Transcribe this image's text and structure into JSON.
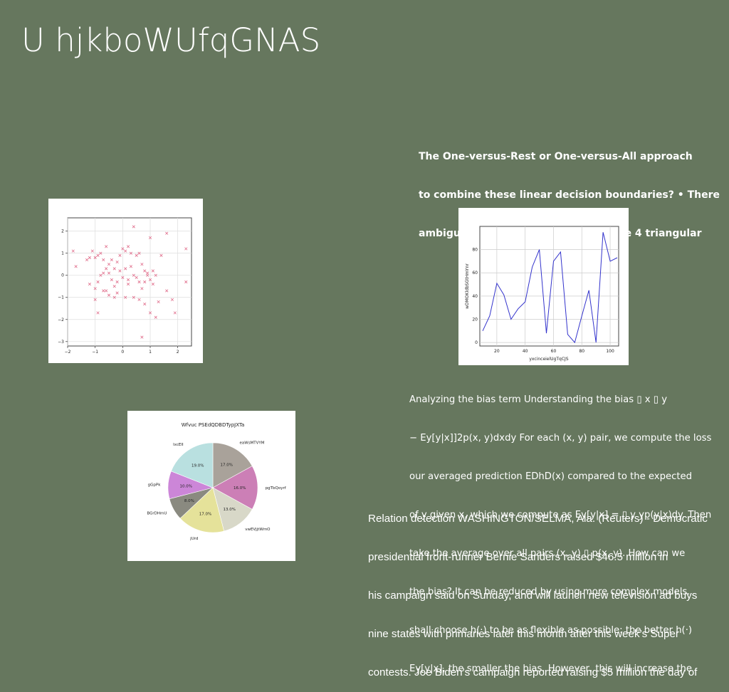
{
  "slide": {
    "title": "U hjkboWUfqGNAS",
    "bold_lines": [
      "The One-versus-Rest or One-versus-All approach",
      "to combine these linear decision boundaries? • There",
      "ambiguity in some of the regions (the 4 triangular"
    ],
    "paragraph_lines": [
      "Analyzing the bias term Understanding the bias ▯ x ▯ y",
      "− Ey[y|x]]2p(x, y)dxdy For each (x, y) pair, we compute the loss",
      "our averaged prediction EDhD(x) compared to the expected",
      "of y given x, which we compute as Ey[y|x] = ▯ y yp(y|x)dy. Then",
      "take the average over all pairs (x, y) ▯ p(x, y). How can we",
      "the bias? It can be reduced by using more complex models.",
      "shall choose h(·) to be as flexible as possible: the better h(·)",
      "Ey[y|x], the smaller the bias. However, this will increase the"
    ],
    "news_lines": [
      "Relation detection WASHINGTON/SELMA, Ala. (Reuters) - Democratic",
      "presidential front-runner Bernie Sanders raised $46.5 million in",
      "his campaign said on Sunday, and will launch new television ad buys",
      "nine states with primaries later this month after this week’s Super",
      "contests. Joe Biden’s campaign reported raising $5 million the day of"
    ]
  },
  "chart_data": [
    {
      "type": "scatter",
      "marker": "x",
      "color": "#e06c8a",
      "xlim": [
        -2,
        2.5
      ],
      "ylim": [
        -3.2,
        2.6
      ],
      "xticks": [
        -2,
        -1,
        0,
        1,
        2
      ],
      "yticks": [
        -3,
        -2,
        -1,
        0,
        1,
        2
      ],
      "xtick_labels": [
        "−2",
        "−1",
        "0",
        "1",
        "2"
      ],
      "ytick_labels": [
        "−3",
        "−2",
        "−1",
        "0",
        "1",
        "2"
      ],
      "grid": true,
      "points": [
        [
          -1.8,
          1.1
        ],
        [
          -1.7,
          0.4
        ],
        [
          -1.3,
          0.7
        ],
        [
          -1.2,
          0.8
        ],
        [
          -1.1,
          1.1
        ],
        [
          -1.0,
          0.8
        ],
        [
          -0.9,
          0.9
        ],
        [
          -0.8,
          1.0
        ],
        [
          -0.7,
          0.7
        ],
        [
          -0.6,
          1.3
        ],
        [
          -0.5,
          0.5
        ],
        [
          -0.4,
          0.7
        ],
        [
          -0.3,
          0.3
        ],
        [
          -0.2,
          0.6
        ],
        [
          -0.1,
          0.9
        ],
        [
          0.0,
          1.2
        ],
        [
          0.1,
          1.1
        ],
        [
          0.2,
          1.3
        ],
        [
          0.3,
          1.0
        ],
        [
          0.4,
          2.2
        ],
        [
          0.5,
          0.9
        ],
        [
          0.6,
          1.0
        ],
        [
          0.7,
          0.5
        ],
        [
          0.8,
          0.2
        ],
        [
          0.9,
          0.1
        ],
        [
          1.0,
          1.7
        ],
        [
          1.2,
          0.0
        ],
        [
          1.4,
          0.9
        ],
        [
          1.6,
          1.9
        ],
        [
          2.3,
          1.2
        ],
        [
          -1.2,
          -0.4
        ],
        [
          -1.0,
          -0.6
        ],
        [
          -0.9,
          -0.3
        ],
        [
          -0.8,
          0.0
        ],
        [
          -0.7,
          0.1
        ],
        [
          -0.6,
          0.3
        ],
        [
          -0.5,
          0.1
        ],
        [
          -0.4,
          -0.2
        ],
        [
          -0.3,
          -0.5
        ],
        [
          -0.2,
          -0.3
        ],
        [
          -0.1,
          0.2
        ],
        [
          0.0,
          -0.1
        ],
        [
          0.1,
          0.3
        ],
        [
          0.2,
          -0.2
        ],
        [
          0.3,
          0.4
        ],
        [
          0.4,
          0.0
        ],
        [
          0.5,
          -0.1
        ],
        [
          0.6,
          -0.3
        ],
        [
          0.7,
          -0.6
        ],
        [
          0.8,
          -0.3
        ],
        [
          0.9,
          0.0
        ],
        [
          1.0,
          -0.2
        ],
        [
          1.1,
          -0.4
        ],
        [
          -1.0,
          -1.1
        ],
        [
          -0.9,
          -1.7
        ],
        [
          -0.7,
          -0.7
        ],
        [
          -0.5,
          -0.9
        ],
        [
          -0.3,
          -1.0
        ],
        [
          -0.2,
          -0.8
        ],
        [
          0.1,
          -1.0
        ],
        [
          0.4,
          -1.0
        ],
        [
          0.6,
          -1.1
        ],
        [
          0.8,
          -1.3
        ],
        [
          1.0,
          -1.7
        ],
        [
          1.2,
          -1.9
        ],
        [
          1.3,
          -1.2
        ],
        [
          1.6,
          -0.7
        ],
        [
          1.8,
          -1.1
        ],
        [
          1.9,
          -1.7
        ],
        [
          2.3,
          -0.3
        ],
        [
          0.7,
          -2.8
        ],
        [
          -0.6,
          -0.7
        ],
        [
          0.2,
          -0.4
        ],
        [
          1.1,
          0.2
        ]
      ]
    },
    {
      "type": "line",
      "color": "#3333cc",
      "xlabel": "yxcinceielUgTqCJS",
      "ylabel": "wDMOKldbSGtHmYnr",
      "xlim": [
        8,
        106
      ],
      "ylim": [
        -3,
        100
      ],
      "xticks": [
        20,
        40,
        60,
        80,
        100
      ],
      "yticks": [
        0,
        20,
        40,
        60,
        80
      ],
      "grid": true,
      "x": [
        10,
        15,
        20,
        25,
        30,
        35,
        40,
        45,
        50,
        55,
        60,
        65,
        70,
        75,
        80,
        85,
        90,
        95,
        100,
        105
      ],
      "y": [
        10,
        23,
        51,
        41,
        20,
        29,
        35,
        65,
        80,
        8,
        70,
        78,
        7,
        0,
        23,
        45,
        0,
        95,
        70,
        73
      ]
    },
    {
      "type": "pie",
      "title": "Wfvuc PSEdQDBDTypJXTa",
      "labels": [
        "eaWsMTVYM",
        "pgTbQoyrf",
        "vwEVjjtWmO",
        "jUrd",
        "BGrDHmU",
        "gGpPk",
        "lxcEII"
      ],
      "values": [
        17.0,
        16.0,
        13.0,
        17.0,
        8.0,
        10.0,
        19.0
      ],
      "value_labels": [
        "17.0%",
        "16.0%",
        "13.0%",
        "17.0%",
        "8.0%",
        "10.0%",
        "19.0%"
      ],
      "colors": [
        "#a9a29a",
        "#cc7fb6",
        "#d8d8c8",
        "#e5e29a",
        "#8a8a80",
        "#cc86d8",
        "#b9e0e0"
      ]
    }
  ]
}
